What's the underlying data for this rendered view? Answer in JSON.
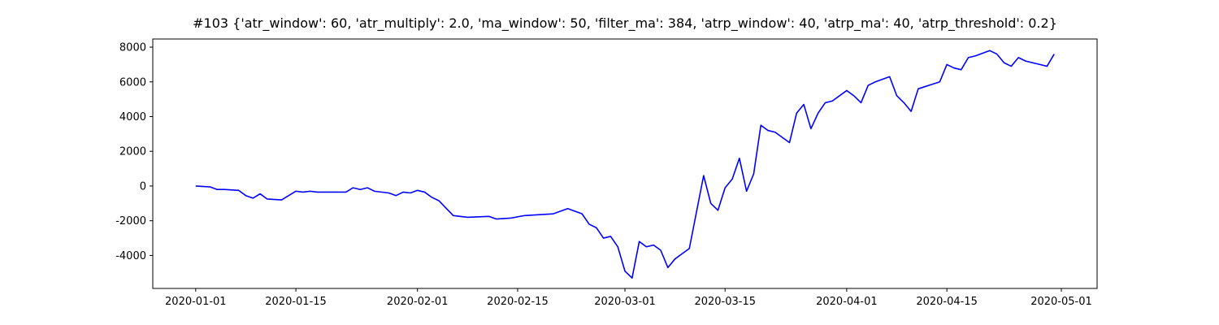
{
  "chart_data": {
    "type": "line",
    "title": "#103 {'atr_window': 60, 'atr_multiply': 2.0, 'ma_window': 50, 'filter_ma': 384, 'atrp_window': 40, 'atrp_ma': 40, 'atrp_threshold': 0.2}",
    "x": [
      "2020-01-01",
      "2020-01-03",
      "2020-01-04",
      "2020-01-05",
      "2020-01-07",
      "2020-01-08",
      "2020-01-09",
      "2020-01-10",
      "2020-01-11",
      "2020-01-13",
      "2020-01-15",
      "2020-01-16",
      "2020-01-17",
      "2020-01-18",
      "2020-01-20",
      "2020-01-22",
      "2020-01-23",
      "2020-01-24",
      "2020-01-25",
      "2020-01-26",
      "2020-01-28",
      "2020-01-29",
      "2020-01-30",
      "2020-01-31",
      "2020-02-01",
      "2020-02-02",
      "2020-02-03",
      "2020-02-04",
      "2020-02-06",
      "2020-02-08",
      "2020-02-11",
      "2020-02-12",
      "2020-02-14",
      "2020-02-16",
      "2020-02-20",
      "2020-02-21",
      "2020-02-22",
      "2020-02-24",
      "2020-02-25",
      "2020-02-26",
      "2020-02-27",
      "2020-02-28",
      "2020-02-29",
      "2020-03-01",
      "2020-03-02",
      "2020-03-03",
      "2020-03-04",
      "2020-03-05",
      "2020-03-06",
      "2020-03-07",
      "2020-03-08",
      "2020-03-09",
      "2020-03-10",
      "2020-03-11",
      "2020-03-12",
      "2020-03-13",
      "2020-03-14",
      "2020-03-15",
      "2020-03-16",
      "2020-03-17",
      "2020-03-18",
      "2020-03-19",
      "2020-03-20",
      "2020-03-21",
      "2020-03-22",
      "2020-03-24",
      "2020-03-25",
      "2020-03-26",
      "2020-03-27",
      "2020-03-28",
      "2020-03-29",
      "2020-03-30",
      "2020-04-01",
      "2020-04-02",
      "2020-04-03",
      "2020-04-04",
      "2020-04-05",
      "2020-04-07",
      "2020-04-08",
      "2020-04-09",
      "2020-04-10",
      "2020-04-11",
      "2020-04-14",
      "2020-04-15",
      "2020-04-16",
      "2020-04-17",
      "2020-04-18",
      "2020-04-19",
      "2020-04-21",
      "2020-04-22",
      "2020-04-23",
      "2020-04-24",
      "2020-04-25",
      "2020-04-26",
      "2020-04-28",
      "2020-04-29",
      "2020-04-30"
    ],
    "series": [
      {
        "color": "#0000ff",
        "values": [
          0,
          -50,
          -200,
          -200,
          -250,
          -550,
          -700,
          -450,
          -750,
          -800,
          -300,
          -350,
          -300,
          -350,
          -350,
          -350,
          -100,
          -200,
          -100,
          -300,
          -400,
          -550,
          -350,
          -400,
          -250,
          -350,
          -650,
          -850,
          -1700,
          -1800,
          -1750,
          -1900,
          -1850,
          -1700,
          -1600,
          -1450,
          -1300,
          -1600,
          -2200,
          -2400,
          -3000,
          -2900,
          -3500,
          -4900,
          -5300,
          -3200,
          -3500,
          -3400,
          -3700,
          -4700,
          -4200,
          -3900,
          -3600,
          -1500,
          600,
          -1000,
          -1400,
          -100,
          400,
          1600,
          -300,
          700,
          3500,
          3200,
          3100,
          2500,
          4200,
          4700,
          3300,
          4200,
          4800,
          4900,
          5500,
          5200,
          4800,
          5800,
          6000,
          6300,
          5200,
          4800,
          4300,
          5600,
          6000,
          7000,
          6800,
          6700,
          7400,
          7500,
          7800,
          7600,
          7100,
          6900,
          7400,
          7200,
          7000,
          6900,
          7600
        ]
      }
    ],
    "xlim": [
      "2019-12-26",
      "2020-05-06"
    ],
    "xticks": [
      "2020-01-01",
      "2020-01-15",
      "2020-02-01",
      "2020-02-15",
      "2020-03-01",
      "2020-03-15",
      "2020-04-01",
      "2020-04-15",
      "2020-05-01"
    ],
    "ylim": [
      -5900,
      8470
    ],
    "yticks": [
      -4000,
      -2000,
      0,
      2000,
      4000,
      6000,
      8000
    ]
  }
}
